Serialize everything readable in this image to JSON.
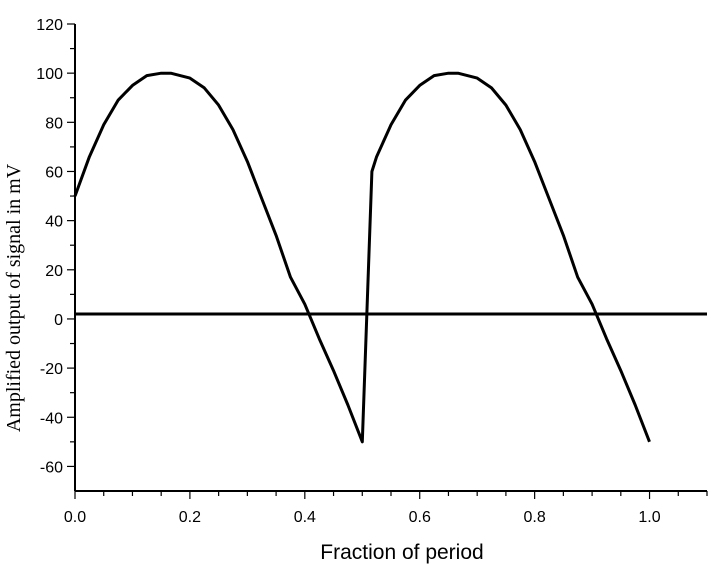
{
  "chart_data": {
    "type": "line",
    "title": "",
    "xlabel": "Fraction of period",
    "ylabel": "Amplified output of signal in mV",
    "xlim": [
      0,
      1.1
    ],
    "ylim": [
      -70,
      120
    ],
    "x_ticks": [
      "0.0",
      "0.2",
      "0.4",
      "0.6",
      "0.8",
      "1.0"
    ],
    "x_tick_values": [
      0,
      0.2,
      0.4,
      0.6,
      0.8,
      1.0
    ],
    "y_ticks": [
      "120",
      "100",
      "80",
      "60",
      "40",
      "20",
      "0",
      "-20",
      "-40",
      "-60"
    ],
    "y_tick_values": [
      120,
      100,
      80,
      60,
      40,
      20,
      0,
      -20,
      -40,
      -60
    ],
    "grid": false,
    "reference_line": {
      "y": 2,
      "color": "#000000"
    },
    "series": [
      {
        "color": "#000000",
        "x": [
          0,
          0.025,
          0.05,
          0.075,
          0.1,
          0.125,
          0.15,
          0.1667,
          0.2,
          0.225,
          0.25,
          0.275,
          0.3,
          0.325,
          0.35,
          0.375,
          0.4,
          0.425,
          0.45,
          0.475,
          0.5,
          0.5167,
          0.525,
          0.55,
          0.575,
          0.6,
          0.625,
          0.65,
          0.6667,
          0.7,
          0.725,
          0.75,
          0.775,
          0.8,
          0.825,
          0.85,
          0.875,
          0.9,
          0.925,
          0.95,
          0.975,
          1.0
        ],
        "y": [
          50,
          66,
          79,
          89,
          95,
          99,
          100,
          100,
          98,
          94,
          87,
          77,
          64,
          49,
          34,
          17,
          6,
          -8,
          -21,
          -35,
          -50,
          60,
          66,
          79,
          89,
          95,
          99,
          100,
          100,
          98,
          94,
          87,
          77,
          64,
          49,
          34,
          17,
          6,
          -8,
          -21,
          -35,
          -50
        ]
      }
    ]
  }
}
